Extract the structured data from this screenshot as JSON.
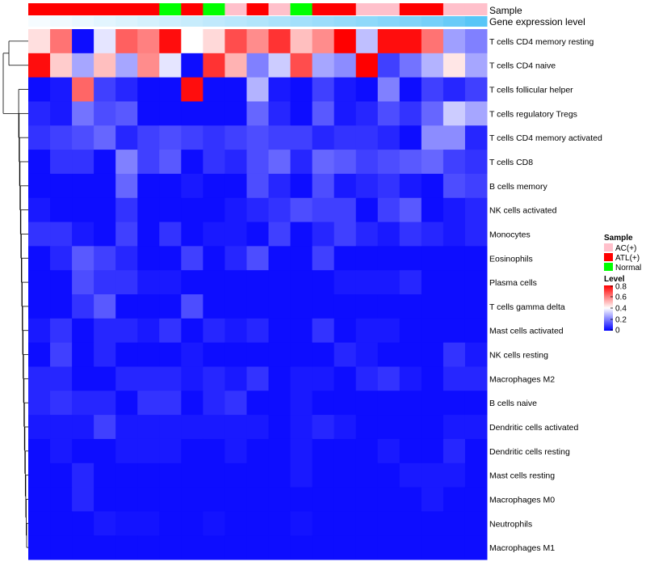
{
  "chart_data": {
    "type": "heatmap",
    "title": "",
    "annotation_tracks": [
      {
        "name": "Sample",
        "label": "Sample"
      },
      {
        "name": "Gene expression level",
        "label": "Gene expression level"
      }
    ],
    "sample_groups": [
      "ATL(+)",
      "ATL(+)",
      "ATL(+)",
      "ATL(+)",
      "ATL(+)",
      "ATL(+)",
      "Normal",
      "ATL(+)",
      "Normal",
      "AC(+)",
      "ATL(+)",
      "AC(+)",
      "Normal",
      "ATL(+)",
      "ATL(+)",
      "AC(+)",
      "AC(+)",
      "ATL(+)",
      "ATL(+)",
      "AC(+)",
      "AC(+)"
    ],
    "expression_level": [
      0.05,
      0.08,
      0.12,
      0.16,
      0.2,
      0.24,
      0.28,
      0.32,
      0.36,
      0.4,
      0.44,
      0.48,
      0.52,
      0.56,
      0.6,
      0.64,
      0.68,
      0.72,
      0.78,
      0.86,
      0.95
    ],
    "rows": [
      "T cells CD4 memory resting",
      "T cells CD4 naive",
      "T cells follicular helper",
      "T cells regulatory  Tregs",
      "T cells CD4 memory activated",
      "T cells CD8",
      "B cells memory",
      "NK cells activated",
      "Monocytes",
      "Eosinophils",
      "Plasma cells",
      "T cells gamma delta",
      "Mast cells activated",
      "NK cells resting",
      "Macrophages M2",
      "B cells naive",
      "Dendritic cells activated",
      "Dendritic cells resting",
      "Mast cells resting",
      "Macrophages M0",
      "Neutrophils",
      "Macrophages M1"
    ],
    "values": [
      [
        0.45,
        0.62,
        0.02,
        0.36,
        0.65,
        0.6,
        0.78,
        0.4,
        0.46,
        0.68,
        0.58,
        0.72,
        0.5,
        0.58,
        0.8,
        0.3,
        0.78,
        0.78,
        0.62,
        0.25,
        0.2
      ],
      [
        0.78,
        0.48,
        0.26,
        0.5,
        0.26,
        0.58,
        0.36,
        0.02,
        0.72,
        0.52,
        0.2,
        0.32,
        0.68,
        0.26,
        0.22,
        0.8,
        0.1,
        0.18,
        0.28,
        0.44,
        0.26
      ],
      [
        0.02,
        0.04,
        0.64,
        0.1,
        0.06,
        0.02,
        0.02,
        0.78,
        0.02,
        0.02,
        0.28,
        0.04,
        0.02,
        0.1,
        0.04,
        0.02,
        0.2,
        0.02,
        0.1,
        0.06,
        0.1
      ],
      [
        0.06,
        0.04,
        0.18,
        0.12,
        0.14,
        0.02,
        0.02,
        0.02,
        0.02,
        0.02,
        0.16,
        0.06,
        0.02,
        0.14,
        0.04,
        0.06,
        0.12,
        0.08,
        0.16,
        0.32,
        0.26
      ],
      [
        0.08,
        0.1,
        0.12,
        0.16,
        0.06,
        0.1,
        0.12,
        0.1,
        0.08,
        0.1,
        0.12,
        0.1,
        0.1,
        0.06,
        0.08,
        0.08,
        0.06,
        0.02,
        0.22,
        0.22,
        0.06
      ],
      [
        0.02,
        0.08,
        0.08,
        0.02,
        0.2,
        0.1,
        0.14,
        0.02,
        0.08,
        0.06,
        0.12,
        0.16,
        0.06,
        0.16,
        0.14,
        0.1,
        0.12,
        0.14,
        0.16,
        0.1,
        0.08
      ],
      [
        0.02,
        0.02,
        0.02,
        0.02,
        0.16,
        0.02,
        0.02,
        0.04,
        0.02,
        0.02,
        0.12,
        0.06,
        0.02,
        0.12,
        0.04,
        0.06,
        0.08,
        0.04,
        0.02,
        0.12,
        0.1
      ],
      [
        0.04,
        0.02,
        0.02,
        0.02,
        0.08,
        0.02,
        0.02,
        0.02,
        0.02,
        0.04,
        0.06,
        0.08,
        0.12,
        0.1,
        0.1,
        0.02,
        0.1,
        0.14,
        0.02,
        0.04,
        0.06
      ],
      [
        0.08,
        0.08,
        0.04,
        0.02,
        0.1,
        0.02,
        0.08,
        0.02,
        0.04,
        0.04,
        0.02,
        0.1,
        0.02,
        0.06,
        0.1,
        0.06,
        0.04,
        0.08,
        0.06,
        0.04,
        0.06
      ],
      [
        0.02,
        0.06,
        0.14,
        0.1,
        0.06,
        0.02,
        0.02,
        0.1,
        0.02,
        0.06,
        0.12,
        0.02,
        0.02,
        0.1,
        0.02,
        0.02,
        0.02,
        0.02,
        0.02,
        0.02,
        0.02
      ],
      [
        0.02,
        0.02,
        0.12,
        0.08,
        0.08,
        0.04,
        0.04,
        0.02,
        0.02,
        0.02,
        0.02,
        0.02,
        0.02,
        0.02,
        0.04,
        0.04,
        0.04,
        0.06,
        0.02,
        0.02,
        0.02
      ],
      [
        0.02,
        0.02,
        0.08,
        0.14,
        0.02,
        0.02,
        0.02,
        0.12,
        0.02,
        0.02,
        0.02,
        0.02,
        0.02,
        0.02,
        0.02,
        0.02,
        0.02,
        0.02,
        0.02,
        0.02,
        0.02
      ],
      [
        0.04,
        0.08,
        0.02,
        0.06,
        0.06,
        0.04,
        0.08,
        0.02,
        0.06,
        0.04,
        0.06,
        0.02,
        0.02,
        0.08,
        0.02,
        0.04,
        0.04,
        0.02,
        0.02,
        0.02,
        0.02
      ],
      [
        0.02,
        0.1,
        0.02,
        0.06,
        0.02,
        0.02,
        0.02,
        0.04,
        0.02,
        0.02,
        0.02,
        0.02,
        0.02,
        0.02,
        0.06,
        0.04,
        0.02,
        0.02,
        0.02,
        0.08,
        0.04
      ],
      [
        0.06,
        0.06,
        0.02,
        0.02,
        0.06,
        0.06,
        0.06,
        0.04,
        0.06,
        0.04,
        0.08,
        0.02,
        0.04,
        0.04,
        0.02,
        0.06,
        0.08,
        0.04,
        0.02,
        0.06,
        0.06
      ],
      [
        0.06,
        0.08,
        0.06,
        0.06,
        0.02,
        0.08,
        0.08,
        0.02,
        0.06,
        0.08,
        0.02,
        0.02,
        0.04,
        0.02,
        0.02,
        0.02,
        0.02,
        0.02,
        0.02,
        0.02,
        0.02
      ],
      [
        0.04,
        0.04,
        0.04,
        0.1,
        0.04,
        0.04,
        0.04,
        0.04,
        0.04,
        0.04,
        0.04,
        0.02,
        0.04,
        0.06,
        0.04,
        0.02,
        0.02,
        0.02,
        0.02,
        0.04,
        0.04
      ],
      [
        0.02,
        0.04,
        0.02,
        0.02,
        0.04,
        0.04,
        0.04,
        0.02,
        0.02,
        0.04,
        0.02,
        0.02,
        0.04,
        0.02,
        0.02,
        0.02,
        0.04,
        0.02,
        0.02,
        0.06,
        0.02
      ],
      [
        0.02,
        0.02,
        0.06,
        0.02,
        0.02,
        0.02,
        0.02,
        0.02,
        0.02,
        0.02,
        0.02,
        0.02,
        0.04,
        0.02,
        0.02,
        0.02,
        0.02,
        0.04,
        0.04,
        0.04,
        0.02
      ],
      [
        0.02,
        0.02,
        0.06,
        0.02,
        0.02,
        0.02,
        0.02,
        0.02,
        0.02,
        0.02,
        0.02,
        0.02,
        0.02,
        0.02,
        0.02,
        0.02,
        0.02,
        0.02,
        0.04,
        0.02,
        0.02
      ],
      [
        0.02,
        0.02,
        0.02,
        0.04,
        0.03,
        0.03,
        0.02,
        0.02,
        0.03,
        0.02,
        0.02,
        0.02,
        0.03,
        0.02,
        0.02,
        0.02,
        0.02,
        0.02,
        0.02,
        0.02,
        0.02
      ],
      [
        0.02,
        0.02,
        0.02,
        0.02,
        0.02,
        0.02,
        0.02,
        0.02,
        0.02,
        0.02,
        0.02,
        0.02,
        0.02,
        0.02,
        0.02,
        0.02,
        0.02,
        0.02,
        0.02,
        0.02,
        0.02
      ]
    ],
    "legend": {
      "sample_title": "Sample",
      "sample_entries": [
        {
          "label": "AC(+)",
          "color": "#ffc0cb"
        },
        {
          "label": "ATL(+)",
          "color": "#ff0000"
        },
        {
          "label": "Normal",
          "color": "#00ff00"
        }
      ],
      "level_title": "Level",
      "level_ticks": [
        "0.8",
        "0.6",
        "0.4",
        "0.2",
        "0"
      ],
      "level_tick_values": [
        0.8,
        0.6,
        0.4,
        0.2,
        0
      ],
      "level_range": [
        0,
        0.8
      ]
    },
    "colors": {
      "low": "#0000ff",
      "mid": "#ffffff",
      "high": "#ff0000",
      "expr_low": "#ffffff",
      "expr_high": "#4fc3f7"
    },
    "placement": {
      "legend": "right",
      "row_labels": "right",
      "dendrogram": "left"
    }
  }
}
